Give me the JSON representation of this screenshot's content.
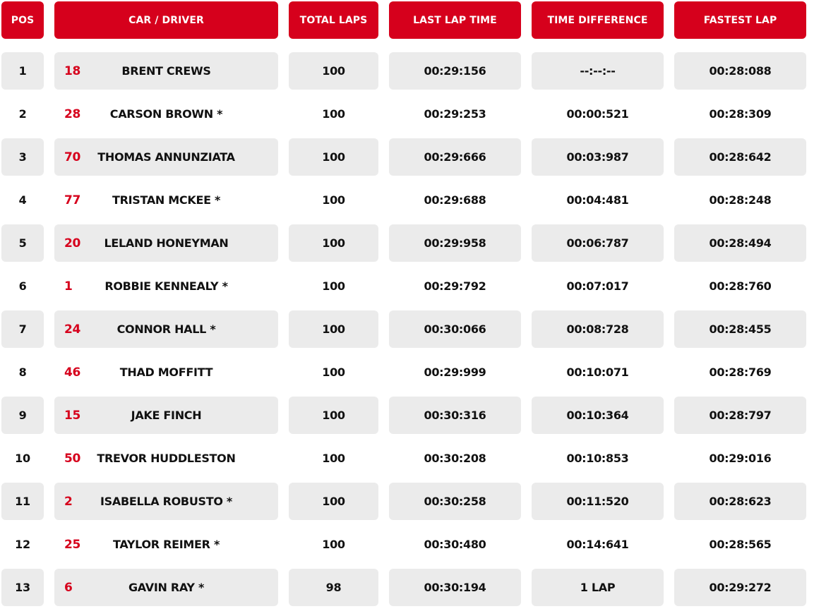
{
  "headers": {
    "pos": "POS",
    "driver": "CAR / DRIVER",
    "laps": "TOTAL LAPS",
    "last": "LAST LAP TIME",
    "diff": "TIME DIFFERENCE",
    "fast": "FASTEST LAP"
  },
  "colors": {
    "accent": "#d6001c",
    "row_shade": "#ebebeb"
  },
  "rows": [
    {
      "pos": "1",
      "car": "18",
      "driver": "BRENT CREWS",
      "laps": "100",
      "last": "00:29:156",
      "diff": "--:--:--",
      "fast": "00:28:088"
    },
    {
      "pos": "2",
      "car": "28",
      "driver": "CARSON BROWN *",
      "laps": "100",
      "last": "00:29:253",
      "diff": "00:00:521",
      "fast": "00:28:309"
    },
    {
      "pos": "3",
      "car": "70",
      "driver": "THOMAS ANNUNZIATA",
      "laps": "100",
      "last": "00:29:666",
      "diff": "00:03:987",
      "fast": "00:28:642"
    },
    {
      "pos": "4",
      "car": "77",
      "driver": "TRISTAN MCKEE *",
      "laps": "100",
      "last": "00:29:688",
      "diff": "00:04:481",
      "fast": "00:28:248"
    },
    {
      "pos": "5",
      "car": "20",
      "driver": "LELAND HONEYMAN",
      "laps": "100",
      "last": "00:29:958",
      "diff": "00:06:787",
      "fast": "00:28:494"
    },
    {
      "pos": "6",
      "car": "1",
      "driver": "ROBBIE KENNEALY *",
      "laps": "100",
      "last": "00:29:792",
      "diff": "00:07:017",
      "fast": "00:28:760"
    },
    {
      "pos": "7",
      "car": "24",
      "driver": "CONNOR HALL *",
      "laps": "100",
      "last": "00:30:066",
      "diff": "00:08:728",
      "fast": "00:28:455"
    },
    {
      "pos": "8",
      "car": "46",
      "driver": "THAD MOFFITT",
      "laps": "100",
      "last": "00:29:999",
      "diff": "00:10:071",
      "fast": "00:28:769"
    },
    {
      "pos": "9",
      "car": "15",
      "driver": "JAKE FINCH",
      "laps": "100",
      "last": "00:30:316",
      "diff": "00:10:364",
      "fast": "00:28:797"
    },
    {
      "pos": "10",
      "car": "50",
      "driver": "TREVOR HUDDLESTON",
      "laps": "100",
      "last": "00:30:208",
      "diff": "00:10:853",
      "fast": "00:29:016"
    },
    {
      "pos": "11",
      "car": "2",
      "driver": "ISABELLA ROBUSTO *",
      "laps": "100",
      "last": "00:30:258",
      "diff": "00:11:520",
      "fast": "00:28:623"
    },
    {
      "pos": "12",
      "car": "25",
      "driver": "TAYLOR REIMER *",
      "laps": "100",
      "last": "00:30:480",
      "diff": "00:14:641",
      "fast": "00:28:565"
    },
    {
      "pos": "13",
      "car": "6",
      "driver": "GAVIN RAY *",
      "laps": "98",
      "last": "00:30:194",
      "diff": "1 LAP",
      "fast": "00:29:272"
    }
  ]
}
